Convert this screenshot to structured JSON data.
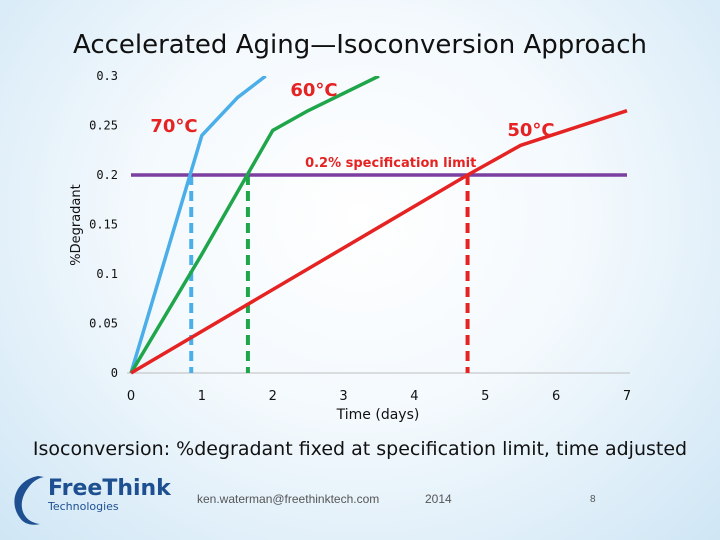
{
  "title": "Accelerated Aging—Isoconversion Approach",
  "caption": "Isoconversion: %degradant fixed at specification limit, time adjusted",
  "footer": {
    "logo_name": "FreeThink",
    "logo_sub": "Technologies",
    "email": "ken.waterman@freethinktech.com",
    "year": "2014",
    "page": "8"
  },
  "colors": {
    "c70": "#4aaee8",
    "c60": "#1fa64a",
    "c50": "#e52322",
    "spec": "#7b3fa0",
    "label": "#e52322"
  },
  "chart_data": {
    "type": "line",
    "title": "Accelerated Aging—Isoconversion Approach",
    "xlabel": "Time (days)",
    "ylabel": "%Degradant",
    "xlim": [
      0,
      7
    ],
    "ylim": [
      0,
      0.3
    ],
    "xticks": [
      "0",
      "1",
      "2",
      "3",
      "4",
      "5",
      "6",
      "7"
    ],
    "yticks": [
      {
        "value": 0,
        "label": "0"
      },
      {
        "value": 0.05,
        "label": "0.05"
      },
      {
        "value": 0.1,
        "label": "0.1"
      },
      {
        "value": 0.15,
        "label": "0.15"
      },
      {
        "value": 0.2,
        "label": "0.2"
      },
      {
        "value": 0.25,
        "label": "0.25"
      },
      {
        "value": 0.3,
        "label": "0.3"
      }
    ],
    "series": [
      {
        "name": "70°C",
        "color_key": "c70",
        "points": [
          [
            0,
            0
          ],
          [
            1.0,
            0.24
          ],
          [
            1.5,
            0.278
          ],
          [
            1.9,
            0.3
          ]
        ]
      },
      {
        "name": "60°C",
        "color_key": "c60",
        "points": [
          [
            0,
            0
          ],
          [
            1.0,
            0.12
          ],
          [
            2.0,
            0.245
          ],
          [
            2.5,
            0.265
          ],
          [
            3.5,
            0.3
          ]
        ]
      },
      {
        "name": "50°C",
        "color_key": "c50",
        "points": [
          [
            0,
            0
          ],
          [
            4.75,
            0.2
          ],
          [
            5.5,
            0.23
          ],
          [
            7.0,
            0.265
          ]
        ]
      }
    ],
    "series_labels": [
      {
        "text": "70°C",
        "series": "70°C"
      },
      {
        "text": "60°C",
        "series": "60°C"
      },
      {
        "text": "50°C",
        "series": "50°C"
      }
    ],
    "spec_limit": {
      "value": 0.2,
      "label": "0.2% specification limit"
    },
    "isoconversion_times": [
      {
        "series": "70°C",
        "x": 0.85
      },
      {
        "series": "60°C",
        "x": 1.65
      },
      {
        "series": "50°C",
        "x": 4.75
      }
    ]
  }
}
